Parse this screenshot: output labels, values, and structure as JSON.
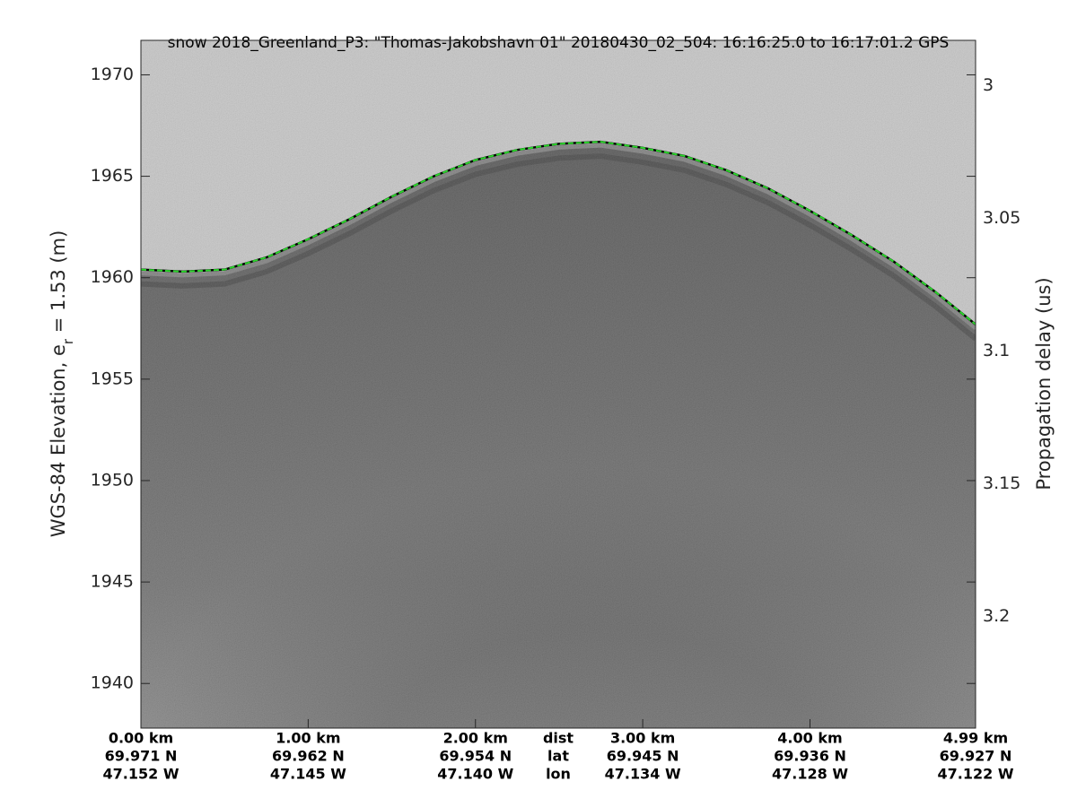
{
  "chart_data": {
    "type": "echogram",
    "title": "snow 2018_Greenland_P3: \"Thomas-Jakobshavn 01\"  20180430_02_504: 16:16:25.0 to 16:17:01.2 GPS",
    "ylabel": [
      "WGS-84 Elevation, e",
      "r",
      " = 1.53 (m)"
    ],
    "y2label": "Propagation delay (us)",
    "xlim": [
      0,
      4.99
    ],
    "xticks": [
      {
        "value": 0,
        "label": "0.00 km"
      },
      {
        "value": 1,
        "label": "1.00 km"
      },
      {
        "value": 2,
        "label": "2.00 km"
      },
      {
        "value": 3,
        "label": "3.00 km"
      },
      {
        "value": 4,
        "label": "4.00 km"
      },
      {
        "value": 4.99,
        "label": "4.99 km"
      }
    ],
    "xtick_lat": [
      "69.971 N",
      "69.962 N",
      "69.954 N",
      "69.945 N",
      "69.936 N",
      "69.927 N"
    ],
    "xtick_lon": [
      "47.152 W",
      "47.145 W",
      "47.140 W",
      "47.134 W",
      "47.128 W",
      "47.122 W"
    ],
    "xtick_row_labels": [
      "dist",
      "lat",
      "lon"
    ],
    "ylim": [
      1937.8,
      1971.7
    ],
    "yticks": [
      1940,
      1945,
      1950,
      1955,
      1960,
      1965,
      1970
    ],
    "y2lim": [
      2.983,
      3.242
    ],
    "y2ticks": [
      3,
      3.05,
      3.1,
      3.15,
      3.2
    ],
    "series": [
      {
        "color": "#2bd62b",
        "x": [
          0,
          0.25,
          0.5,
          0.75,
          1.0,
          1.25,
          1.5,
          1.75,
          2.0,
          2.25,
          2.5,
          2.75,
          3.0,
          3.25,
          3.5,
          3.75,
          4.0,
          4.25,
          4.5,
          4.75,
          4.99
        ],
        "values": [
          1960.4,
          1960.3,
          1960.4,
          1961.0,
          1961.9,
          1962.9,
          1964.0,
          1965.0,
          1965.8,
          1966.3,
          1966.6,
          1966.7,
          1966.4,
          1966.0,
          1965.3,
          1964.4,
          1963.3,
          1962.1,
          1960.8,
          1959.3,
          1957.7
        ]
      }
    ]
  }
}
